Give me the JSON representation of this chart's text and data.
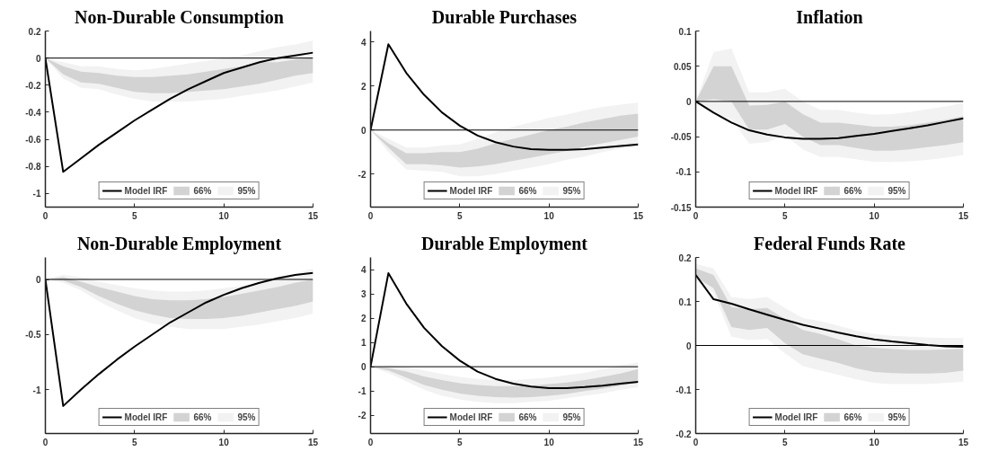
{
  "chart_data": [
    {
      "type": "line",
      "title": "Non-Durable Consumption",
      "x": [
        0,
        1,
        2,
        3,
        4,
        5,
        6,
        7,
        8,
        9,
        10,
        11,
        12,
        13,
        14,
        15
      ],
      "xlim": [
        0,
        15
      ],
      "xticks": [
        0,
        5,
        10,
        15
      ],
      "ylim": [
        -1.1,
        0.2
      ],
      "yticks": [
        -1,
        -0.8,
        -0.6,
        -0.4,
        -0.2,
        0,
        0.2
      ],
      "legend": "bottom",
      "ref_lines": [
        {
          "axis": "y",
          "value": 0,
          "color": "#000000"
        }
      ],
      "series": [
        {
          "name": "Model IRF",
          "type": "line",
          "color": "#000000",
          "values": [
            0,
            -0.84,
            -0.74,
            -0.64,
            -0.55,
            -0.46,
            -0.38,
            -0.3,
            -0.23,
            -0.17,
            -0.11,
            -0.07,
            -0.03,
            0.0,
            0.02,
            0.04
          ]
        },
        {
          "name": "66%",
          "type": "line",
          "color": "#d3d3d3",
          "values": [
            null,
            null,
            null,
            null,
            null,
            null,
            null,
            null,
            null,
            null,
            null,
            null,
            null,
            null,
            null,
            null
          ],
          "upper": [
            0,
            -0.06,
            -0.1,
            -0.11,
            -0.13,
            -0.14,
            -0.14,
            -0.13,
            -0.12,
            -0.1,
            -0.08,
            -0.06,
            -0.03,
            -0.03,
            -0.01,
            0.0
          ],
          "lower": [
            0,
            -0.12,
            -0.18,
            -0.19,
            -0.22,
            -0.25,
            -0.26,
            -0.26,
            -0.25,
            -0.24,
            -0.23,
            -0.21,
            -0.19,
            -0.16,
            -0.13,
            -0.11
          ]
        },
        {
          "name": "95%",
          "type": "line",
          "color": "#f2f2f2",
          "values": [
            null,
            null,
            null,
            null,
            null,
            null,
            null,
            null,
            null,
            null,
            null,
            null,
            null,
            null,
            null,
            null
          ],
          "upper": [
            0,
            -0.03,
            -0.06,
            -0.06,
            -0.08,
            -0.09,
            -0.08,
            -0.06,
            -0.04,
            -0.02,
            0.0,
            0.02,
            0.05,
            0.08,
            0.1,
            0.13
          ],
          "lower": [
            0,
            -0.15,
            -0.22,
            -0.23,
            -0.27,
            -0.3,
            -0.32,
            -0.32,
            -0.32,
            -0.31,
            -0.3,
            -0.28,
            -0.26,
            -0.24,
            -0.21,
            -0.18
          ]
        }
      ]
    },
    {
      "type": "line",
      "title": "Durable Purchases",
      "x": [
        0,
        1,
        2,
        3,
        4,
        5,
        6,
        7,
        8,
        9,
        10,
        11,
        12,
        13,
        14,
        15
      ],
      "xlim": [
        0,
        15
      ],
      "xticks": [
        0,
        5,
        10,
        15
      ],
      "ylim": [
        -3.5,
        4.5
      ],
      "yticks": [
        -2,
        0,
        2,
        4
      ],
      "legend": "bottom",
      "ref_lines": [
        {
          "axis": "y",
          "value": 0,
          "color": "#000000"
        }
      ],
      "series": [
        {
          "name": "Model IRF",
          "type": "line",
          "color": "#000000",
          "values": [
            0,
            3.9,
            2.6,
            1.6,
            0.8,
            0.2,
            -0.25,
            -0.55,
            -0.75,
            -0.87,
            -0.9,
            -0.9,
            -0.87,
            -0.8,
            -0.72,
            -0.65
          ]
        },
        {
          "name": "66%",
          "type": "line",
          "color": "#d3d3d3",
          "values": [
            null,
            null,
            null,
            null,
            null,
            null,
            null,
            null,
            null,
            null,
            null,
            null,
            null,
            null,
            null,
            null
          ],
          "upper": [
            0,
            -0.6,
            -1.05,
            -1.05,
            -1.0,
            -1.0,
            -0.85,
            -0.6,
            -0.4,
            -0.2,
            0.0,
            0.15,
            0.35,
            0.5,
            0.65,
            0.75
          ],
          "lower": [
            0,
            -0.8,
            -1.55,
            -1.55,
            -1.6,
            -1.7,
            -1.65,
            -1.55,
            -1.4,
            -1.25,
            -1.1,
            -0.95,
            -0.75,
            -0.6,
            -0.45,
            -0.3
          ]
        },
        {
          "name": "95%",
          "type": "line",
          "color": "#f2f2f2",
          "values": [
            null,
            null,
            null,
            null,
            null,
            null,
            null,
            null,
            null,
            null,
            null,
            null,
            null,
            null,
            null,
            null
          ],
          "upper": [
            0,
            -0.4,
            -0.8,
            -0.8,
            -0.7,
            -0.65,
            -0.4,
            -0.1,
            0.15,
            0.35,
            0.55,
            0.7,
            0.9,
            1.05,
            1.15,
            1.25
          ],
          "lower": [
            0,
            -1.0,
            -1.8,
            -1.85,
            -1.9,
            -2.1,
            -2.1,
            -2.0,
            -1.85,
            -1.7,
            -1.55,
            -1.35,
            -1.2,
            -1.0,
            -0.85,
            -0.75
          ]
        }
      ]
    },
    {
      "type": "line",
      "title": "Inflation",
      "x": [
        0,
        1,
        2,
        3,
        4,
        5,
        6,
        7,
        8,
        9,
        10,
        11,
        12,
        13,
        14,
        15
      ],
      "xlim": [
        0,
        15
      ],
      "xticks": [
        0,
        5,
        10,
        15
      ],
      "ylim": [
        -0.15,
        0.1
      ],
      "yticks": [
        -0.15,
        -0.1,
        -0.05,
        0,
        0.05,
        0.1
      ],
      "legend": "bottom",
      "ref_lines": [
        {
          "axis": "y",
          "value": 0,
          "color": "#000000"
        }
      ],
      "series": [
        {
          "name": "Model IRF",
          "type": "line",
          "color": "#000000",
          "values": [
            0,
            -0.016,
            -0.03,
            -0.041,
            -0.047,
            -0.051,
            -0.053,
            -0.053,
            -0.052,
            -0.049,
            -0.046,
            -0.042,
            -0.038,
            -0.034,
            -0.029,
            -0.024
          ]
        },
        {
          "name": "66%",
          "type": "line",
          "color": "#d3d3d3",
          "values": [
            null,
            null,
            null,
            null,
            null,
            null,
            null,
            null,
            null,
            null,
            null,
            null,
            null,
            null,
            null,
            null
          ],
          "upper": [
            0,
            0.05,
            0.05,
            -0.006,
            -0.005,
            0.0,
            -0.018,
            -0.03,
            -0.03,
            -0.033,
            -0.036,
            -0.036,
            -0.034,
            -0.03,
            -0.026,
            -0.021
          ],
          "lower": [
            0,
            0.003,
            0.0,
            -0.04,
            -0.04,
            -0.032,
            -0.05,
            -0.062,
            -0.062,
            -0.066,
            -0.07,
            -0.07,
            -0.068,
            -0.065,
            -0.062,
            -0.058
          ]
        },
        {
          "name": "95%",
          "type": "line",
          "color": "#f2f2f2",
          "values": [
            null,
            null,
            null,
            null,
            null,
            null,
            null,
            null,
            null,
            null,
            null,
            null,
            null,
            null,
            null,
            null
          ],
          "upper": [
            0,
            0.07,
            0.075,
            0.013,
            0.013,
            0.018,
            0.0,
            -0.012,
            -0.012,
            -0.016,
            -0.019,
            -0.018,
            -0.015,
            -0.011,
            -0.007,
            -0.002
          ],
          "lower": [
            0,
            -0.017,
            -0.025,
            -0.06,
            -0.058,
            -0.048,
            -0.068,
            -0.079,
            -0.079,
            -0.082,
            -0.086,
            -0.086,
            -0.085,
            -0.083,
            -0.08,
            -0.076
          ]
        }
      ]
    },
    {
      "type": "line",
      "title": "Non-Durable Employment",
      "x": [
        0,
        1,
        2,
        3,
        4,
        5,
        6,
        7,
        8,
        9,
        10,
        11,
        12,
        13,
        14,
        15
      ],
      "xlim": [
        0,
        15
      ],
      "xticks": [
        0,
        5,
        10,
        15
      ],
      "ylim": [
        -1.4,
        0.2
      ],
      "yticks": [
        -1,
        -0.5,
        0
      ],
      "legend": "bottom",
      "ref_lines": [
        {
          "axis": "y",
          "value": 0,
          "color": "#000000"
        }
      ],
      "series": [
        {
          "name": "Model IRF",
          "type": "line",
          "color": "#000000",
          "values": [
            0,
            -1.15,
            -1.0,
            -0.86,
            -0.73,
            -0.61,
            -0.5,
            -0.39,
            -0.3,
            -0.21,
            -0.14,
            -0.08,
            -0.03,
            0.01,
            0.04,
            0.06
          ]
        },
        {
          "name": "66%",
          "type": "line",
          "color": "#d3d3d3",
          "values": [
            null,
            null,
            null,
            null,
            null,
            null,
            null,
            null,
            null,
            null,
            null,
            null,
            null,
            null,
            null,
            null
          ],
          "upper": [
            0,
            0.02,
            -0.02,
            -0.07,
            -0.11,
            -0.15,
            -0.18,
            -0.19,
            -0.19,
            -0.18,
            -0.16,
            -0.13,
            -0.1,
            -0.07,
            -0.03,
            0.0
          ],
          "lower": [
            0,
            -0.01,
            -0.07,
            -0.15,
            -0.22,
            -0.28,
            -0.32,
            -0.35,
            -0.36,
            -0.36,
            -0.35,
            -0.33,
            -0.3,
            -0.27,
            -0.24,
            -0.2
          ]
        },
        {
          "name": "95%",
          "type": "line",
          "color": "#f2f2f2",
          "values": [
            null,
            null,
            null,
            null,
            null,
            null,
            null,
            null,
            null,
            null,
            null,
            null,
            null,
            null,
            null,
            null
          ],
          "upper": [
            0,
            0.04,
            0.02,
            -0.02,
            -0.05,
            -0.08,
            -0.1,
            -0.11,
            -0.11,
            -0.1,
            -0.08,
            -0.06,
            -0.03,
            0.01,
            0.05,
            0.1
          ],
          "lower": [
            0,
            -0.03,
            -0.1,
            -0.2,
            -0.28,
            -0.35,
            -0.4,
            -0.43,
            -0.45,
            -0.45,
            -0.45,
            -0.43,
            -0.41,
            -0.38,
            -0.35,
            -0.31
          ]
        }
      ]
    },
    {
      "type": "line",
      "title": "Durable Employment",
      "x": [
        0,
        1,
        2,
        3,
        4,
        5,
        6,
        7,
        8,
        9,
        10,
        11,
        12,
        13,
        14,
        15
      ],
      "xlim": [
        0,
        15
      ],
      "xticks": [
        0,
        5,
        10,
        15
      ],
      "ylim": [
        -2.75,
        4.5
      ],
      "yticks": [
        -2,
        -1,
        0,
        1,
        2,
        3,
        4
      ],
      "legend": "bottom",
      "ref_lines": [
        {
          "axis": "y",
          "value": 0,
          "color": "#000000"
        }
      ],
      "series": [
        {
          "name": "Model IRF",
          "type": "line",
          "color": "#000000",
          "values": [
            0,
            3.85,
            2.6,
            1.6,
            0.85,
            0.25,
            -0.2,
            -0.5,
            -0.7,
            -0.82,
            -0.88,
            -0.88,
            -0.84,
            -0.78,
            -0.7,
            -0.62
          ]
        },
        {
          "name": "66%",
          "type": "line",
          "color": "#d3d3d3",
          "values": [
            null,
            null,
            null,
            null,
            null,
            null,
            null,
            null,
            null,
            null,
            null,
            null,
            null,
            null,
            null,
            null
          ],
          "upper": [
            0,
            -0.05,
            -0.2,
            -0.4,
            -0.55,
            -0.68,
            -0.75,
            -0.8,
            -0.8,
            -0.78,
            -0.72,
            -0.65,
            -0.55,
            -0.42,
            -0.28,
            -0.1
          ],
          "lower": [
            0,
            -0.15,
            -0.45,
            -0.75,
            -0.95,
            -1.1,
            -1.2,
            -1.25,
            -1.27,
            -1.25,
            -1.2,
            -1.12,
            -1.0,
            -0.9,
            -0.78,
            -0.65
          ]
        },
        {
          "name": "95%",
          "type": "line",
          "color": "#f2f2f2",
          "values": [
            null,
            null,
            null,
            null,
            null,
            null,
            null,
            null,
            null,
            null,
            null,
            null,
            null,
            null,
            null,
            null
          ],
          "upper": [
            0,
            0.05,
            0.0,
            -0.15,
            -0.3,
            -0.42,
            -0.5,
            -0.55,
            -0.55,
            -0.5,
            -0.45,
            -0.35,
            -0.25,
            -0.1,
            0.05,
            0.18
          ],
          "lower": [
            0,
            -0.25,
            -0.6,
            -0.95,
            -1.2,
            -1.35,
            -1.45,
            -1.5,
            -1.5,
            -1.45,
            -1.4,
            -1.3,
            -1.2,
            -1.1,
            -0.95,
            -0.85
          ]
        }
      ]
    },
    {
      "type": "line",
      "title": "Federal Funds Rate",
      "x": [
        0,
        1,
        2,
        3,
        4,
        5,
        6,
        7,
        8,
        9,
        10,
        11,
        12,
        13,
        14,
        15
      ],
      "xlim": [
        0,
        15
      ],
      "xticks": [
        0,
        5,
        10,
        15
      ],
      "ylim": [
        -0.2,
        0.2
      ],
      "yticks": [
        -0.2,
        -0.1,
        0,
        0.1,
        0.2
      ],
      "legend": "bottom",
      "ref_lines": [
        {
          "axis": "y",
          "value": 0,
          "color": "#000000"
        }
      ],
      "series": [
        {
          "name": "Model IRF",
          "type": "line",
          "color": "#000000",
          "values": [
            0.16,
            0.105,
            0.095,
            0.082,
            0.07,
            0.058,
            0.047,
            0.038,
            0.029,
            0.021,
            0.014,
            0.009,
            0.005,
            0.001,
            -0.002,
            -0.003
          ]
        },
        {
          "name": "66%",
          "type": "line",
          "color": "#d3d3d3",
          "values": [
            null,
            null,
            null,
            null,
            null,
            null,
            null,
            null,
            null,
            null,
            null,
            null,
            null,
            null,
            null,
            null
          ],
          "upper": [
            0.175,
            0.16,
            0.087,
            0.082,
            0.085,
            0.06,
            0.035,
            0.026,
            0.014,
            0.0,
            -0.005,
            -0.008,
            -0.01,
            -0.01,
            -0.009,
            -0.007
          ],
          "lower": [
            0.155,
            0.13,
            0.042,
            0.035,
            0.04,
            0.005,
            -0.02,
            -0.03,
            -0.04,
            -0.052,
            -0.06,
            -0.063,
            -0.064,
            -0.064,
            -0.062,
            -0.057
          ]
        },
        {
          "name": "95%",
          "type": "line",
          "color": "#f2f2f2",
          "values": [
            null,
            null,
            null,
            null,
            null,
            null,
            null,
            null,
            null,
            null,
            null,
            null,
            null,
            null,
            null,
            null
          ],
          "upper": [
            0.185,
            0.175,
            0.11,
            0.105,
            0.11,
            0.085,
            0.062,
            0.055,
            0.045,
            0.033,
            0.026,
            0.022,
            0.02,
            0.018,
            0.017,
            0.017
          ],
          "lower": [
            0.148,
            0.12,
            0.02,
            0.012,
            0.015,
            -0.018,
            -0.047,
            -0.057,
            -0.067,
            -0.077,
            -0.085,
            -0.088,
            -0.088,
            -0.087,
            -0.085,
            -0.082
          ]
        }
      ]
    }
  ]
}
